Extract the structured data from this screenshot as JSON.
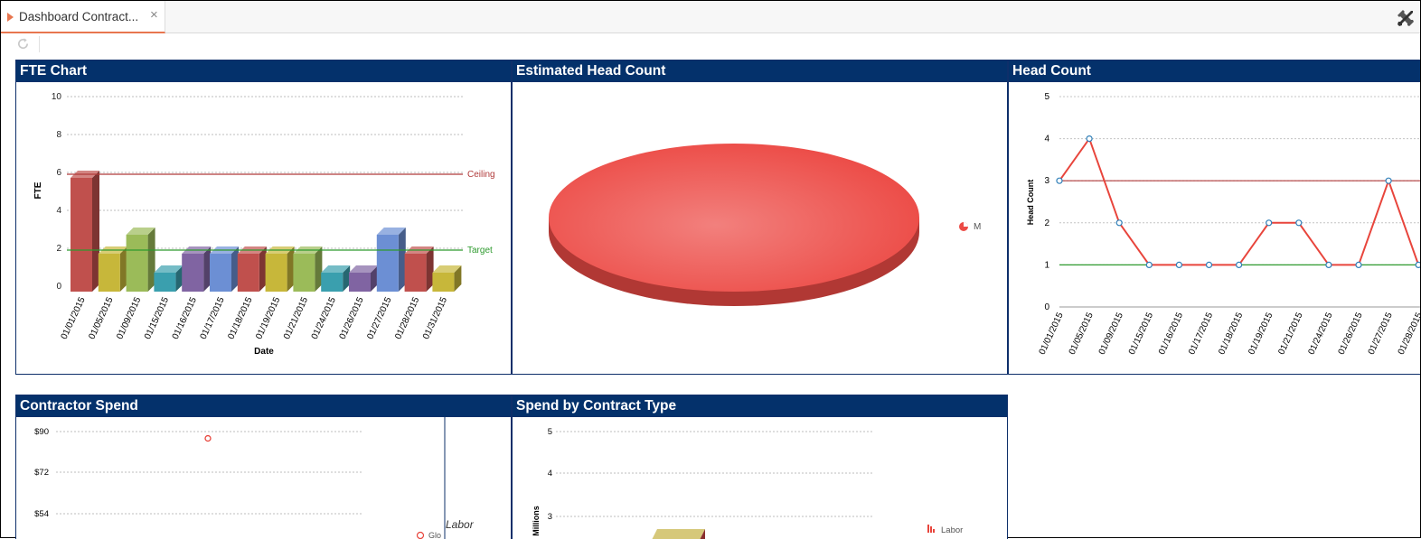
{
  "tab": {
    "label": "Dashboard Contract...",
    "close_glyph": "×"
  },
  "toolbar": {
    "refresh_icon": "refresh-icon",
    "tools_icon": "tools-icon"
  },
  "panels": {
    "fte": {
      "title": "FTE Chart"
    },
    "estimated": {
      "title": "Estimated Head Count"
    },
    "headcount": {
      "title": "Head Count"
    },
    "spend": {
      "title": "Contractor Spend"
    },
    "contract_type": {
      "title": "Spend by Contract Type"
    }
  },
  "chart_data": [
    {
      "id": "fte",
      "type": "bar",
      "categories": [
        "01/01/2015",
        "01/05/2015",
        "01/09/2015",
        "01/15/2015",
        "01/16/2015",
        "01/17/2015",
        "01/18/2015",
        "01/19/2015",
        "01/21/2015",
        "01/24/2015",
        "01/26/2015",
        "01/27/2015",
        "01/28/2015",
        "01/31/2015"
      ],
      "values": [
        6,
        2,
        3,
        1,
        2,
        2,
        2,
        2,
        2,
        1,
        1,
        3,
        2,
        1
      ],
      "bar_colors": [
        "#c0504d",
        "#c7b73a",
        "#9bbb59",
        "#3a9fae",
        "#8064a2",
        "#6c8fd4",
        "#c0504d",
        "#c7b73a",
        "#9bbb59",
        "#3a9fae",
        "#8064a2",
        "#6c8fd4",
        "#c0504d",
        "#c7b73a"
      ],
      "xlabel": "Date",
      "ylabel": "FTE",
      "ylim": [
        0,
        10
      ],
      "yticks": [
        0,
        2,
        4,
        6,
        8,
        10
      ],
      "ceiling": {
        "label": "Ceiling",
        "value": 6,
        "color": "#b03a3a"
      },
      "target": {
        "label": "Target",
        "value": 2,
        "color": "#2e9a2e"
      },
      "grid": true
    },
    {
      "id": "estimated",
      "type": "pie",
      "slices": [
        {
          "label": "M",
          "value": 100,
          "color": "#ec4a45"
        }
      ],
      "legend": "right"
    },
    {
      "id": "headcount",
      "type": "line",
      "categories": [
        "01/01/2015",
        "01/05/2015",
        "01/09/2015",
        "01/15/2015",
        "01/16/2015",
        "01/17/2015",
        "01/18/2015",
        "01/19/2015",
        "01/21/2015",
        "01/24/2015",
        "01/26/2015",
        "01/27/2015",
        "01/28/2015"
      ],
      "values": [
        3,
        4,
        2,
        1,
        1,
        1,
        1,
        2,
        2,
        1,
        1,
        3,
        1
      ],
      "ylabel": "Head Count",
      "ylim": [
        0,
        5
      ],
      "yticks": [
        0,
        1,
        2,
        3,
        4,
        5
      ],
      "ceiling": {
        "value": 3,
        "color": "#b03a3a"
      },
      "target": {
        "value": 1,
        "color": "#2e9a2e"
      },
      "line_color": "#e8453c",
      "grid": true
    },
    {
      "id": "spend",
      "type": "scatter",
      "yticks": [
        "$90",
        "$72",
        "$54"
      ],
      "points": [
        {
          "y": 87
        }
      ],
      "ylim": [
        54,
        90
      ],
      "legend_items": [
        {
          "label": "Labor"
        },
        {
          "label": "Glo"
        }
      ]
    },
    {
      "id": "contract_type",
      "type": "bar",
      "yticks": [
        3,
        4,
        5
      ],
      "ylabel": "Millions",
      "ylim": [
        3,
        5
      ],
      "legend_items": [
        {
          "label": "Labor"
        }
      ]
    }
  ]
}
